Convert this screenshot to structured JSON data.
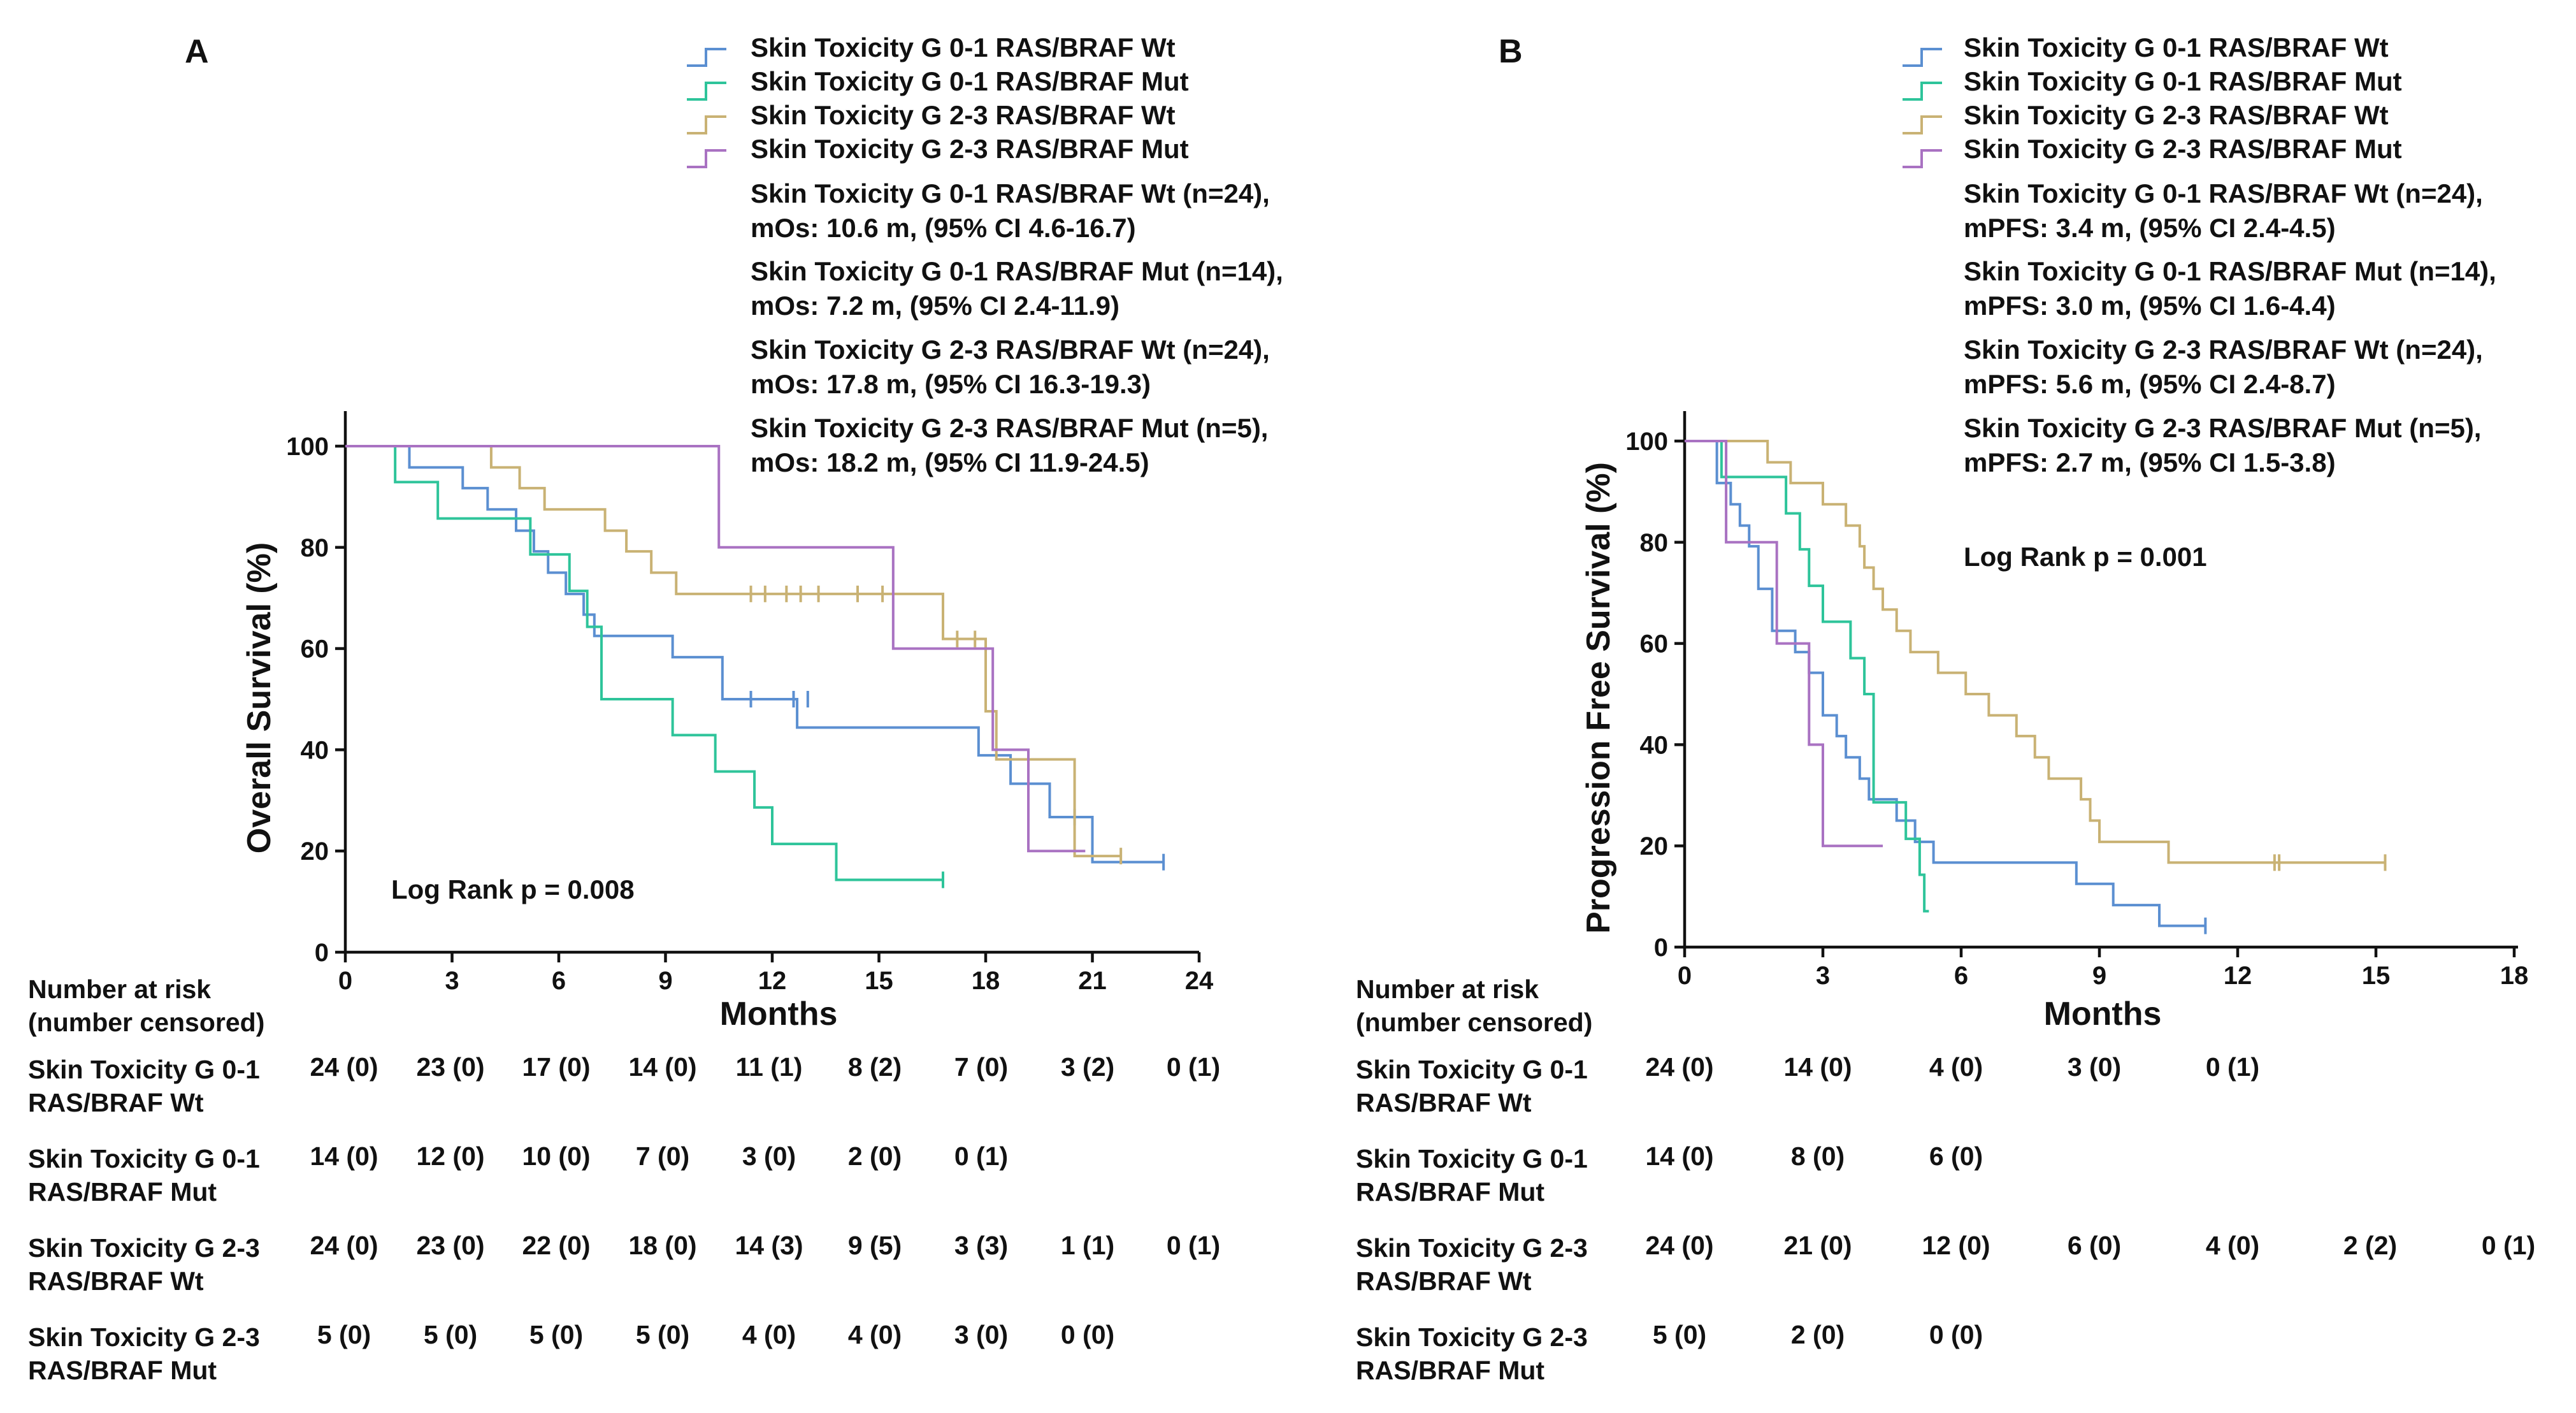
{
  "colors": {
    "wt01": "#5b8fd1",
    "mut01": "#2ec49a",
    "wt23": "#c9b274",
    "mut23": "#a972c2"
  },
  "series_names": [
    "Skin Toxicity G 0-1 RAS/BRAF Wt",
    "Skin Toxicity G 0-1 RAS/BRAF Mut",
    "Skin Toxicity G 2-3 RAS/BRAF Wt",
    "Skin Toxicity G 2-3 RAS/BRAF Mut"
  ],
  "risk_header": [
    "Number at risk",
    "(number censored)"
  ],
  "risk_rows": [
    [
      "Skin Toxicity G 0-1",
      "RAS/BRAF Wt"
    ],
    [
      "Skin Toxicity G 0-1",
      "RAS/BRAF Mut"
    ],
    [
      "Skin Toxicity G 2-3",
      "RAS/BRAF Wt"
    ],
    [
      "Skin Toxicity G 2-3",
      "RAS/BRAF Mut"
    ]
  ],
  "chart_data": [
    {
      "type": "line",
      "panel": "A",
      "xlabel": "Months",
      "ylabel": "Overall Survival (%)",
      "xlim": [
        0,
        24
      ],
      "ylim": [
        0,
        100
      ],
      "xticks": [
        0,
        3,
        6,
        9,
        12,
        15,
        18,
        21,
        24
      ],
      "yticks": [
        0,
        20,
        40,
        60,
        80,
        100
      ],
      "annotation": "Log Rank p = 0.008",
      "median_lines": [
        [
          "Skin Toxicity G 0-1 RAS/BRAF Wt (n=24),",
          "mOs: 10.6 m, (95% CI 4.6-16.7)"
        ],
        [
          "Skin Toxicity G 0-1 RAS/BRAF Mut (n=14),",
          "mOs: 7.2 m, (95% CI 2.4-11.9)"
        ],
        [
          "Skin Toxicity G 2-3 RAS/BRAF Wt (n=24),",
          "mOs: 17.8 m, (95% CI 16.3-19.3)"
        ],
        [
          "Skin Toxicity G 2-3 RAS/BRAF Mut (n=5),",
          "mOs: 18.2 m, (95% CI 11.9-24.5)"
        ]
      ],
      "risk_x": [
        0,
        3,
        6,
        9,
        12,
        15,
        18,
        21,
        24
      ],
      "risk_values": [
        [
          "24 (0)",
          "23 (0)",
          "17 (0)",
          "14 (0)",
          "11 (1)",
          "8 (2)",
          "7 (0)",
          "3 (2)",
          "0 (1)"
        ],
        [
          "14 (0)",
          "12 (0)",
          "10 (0)",
          "7 (0)",
          "3 (0)",
          "2 (0)",
          "0 (1)",
          "",
          ""
        ],
        [
          "24 (0)",
          "23 (0)",
          "22 (0)",
          "18 (0)",
          "14 (3)",
          "9 (5)",
          "3 (3)",
          "1 (1)",
          "0 (1)"
        ],
        [
          "5 (0)",
          "5 (0)",
          "5 (0)",
          "5 (0)",
          "4 (0)",
          "4 (0)",
          "3 (0)",
          "0 (0)",
          ""
        ]
      ],
      "series": [
        {
          "name": "Skin Toxicity G 0-1 RAS/BRAF Wt",
          "key": "wt01",
          "times": [
            1.8,
            3.3,
            4.0,
            4.8,
            5.3,
            5.7,
            6.2,
            6.7,
            7.0,
            9.2,
            10.6,
            12.7,
            17.8,
            18.7,
            19.8,
            21.0
          ],
          "survival": [
            95.8,
            91.7,
            87.5,
            83.3,
            79.2,
            75.0,
            70.8,
            66.7,
            62.5,
            58.3,
            50.0,
            44.4,
            38.9,
            33.3,
            26.7,
            17.8
          ],
          "censors": [
            [
              19.2,
              33.3
            ],
            [
              20.5,
              26.7
            ],
            [
              11.4,
              50.0
            ],
            [
              12.6,
              50.0
            ],
            [
              13.0,
              50.0
            ],
            [
              23.0,
              17.8
            ]
          ]
        },
        {
          "name": "Skin Toxicity G 0-1 RAS/BRAF Mut",
          "key": "mut01",
          "times": [
            1.4,
            2.6,
            5.2,
            6.3,
            6.8,
            7.2,
            9.2,
            10.4,
            11.5,
            12.0,
            13.8
          ],
          "survival": [
            92.9,
            85.7,
            78.6,
            71.4,
            64.3,
            50.0,
            42.9,
            35.7,
            28.6,
            21.4,
            14.3
          ],
          "censors": [
            [
              16.8,
              14.3
            ]
          ]
        },
        {
          "name": "Skin Toxicity G 2-3 RAS/BRAF Wt",
          "key": "wt23",
          "times": [
            4.1,
            4.9,
            5.6,
            7.3,
            7.9,
            8.6,
            9.3,
            16.8,
            18.0,
            18.3,
            20.5
          ],
          "survival": [
            95.8,
            91.7,
            87.5,
            83.3,
            79.2,
            75.0,
            70.8,
            61.9,
            47.6,
            38.1,
            19.0
          ],
          "censors": [
            [
              11.4,
              70.8
            ],
            [
              11.8,
              70.8
            ],
            [
              12.4,
              70.8
            ],
            [
              12.8,
              70.8
            ],
            [
              13.3,
              70.8
            ],
            [
              14.4,
              70.8
            ],
            [
              15.1,
              70.8
            ],
            [
              17.2,
              61.9
            ],
            [
              17.7,
              61.9
            ],
            [
              21.8,
              19.0
            ]
          ]
        },
        {
          "name": "Skin Toxicity G 2-3 RAS/BRAF Mut",
          "key": "mut23",
          "times": [
            10.5,
            15.4,
            18.2,
            19.2
          ],
          "survival": [
            80.0,
            60.0,
            40.0,
            20.0
          ],
          "end": 20.8,
          "censors": []
        }
      ]
    },
    {
      "type": "line",
      "panel": "B",
      "xlabel": "Months",
      "ylabel": "Progression Free Survival (%)",
      "xlim": [
        0,
        18
      ],
      "ylim": [
        0,
        100
      ],
      "xticks": [
        0,
        3,
        6,
        9,
        12,
        15,
        18
      ],
      "yticks": [
        0,
        20,
        40,
        60,
        80,
        100
      ],
      "annotation": "Log Rank p = 0.001",
      "median_lines": [
        [
          "Skin Toxicity G 0-1 RAS/BRAF Wt (n=24),",
          "mPFS: 3.4 m, (95% CI 2.4-4.5)"
        ],
        [
          "Skin Toxicity G 0-1 RAS/BRAF Mut (n=14),",
          "mPFS: 3.0 m, (95% CI 1.6-4.4)"
        ],
        [
          "Skin Toxicity G 2-3 RAS/BRAF Wt (n=24),",
          "mPFS: 5.6 m, (95% CI 2.4-8.7)"
        ],
        [
          "Skin Toxicity G 2-3 RAS/BRAF Mut (n=5),",
          "mPFS: 2.7 m, (95% CI 1.5-3.8)"
        ]
      ],
      "risk_x": [
        0,
        3,
        6,
        9,
        12,
        15,
        18
      ],
      "risk_values": [
        [
          "24 (0)",
          "14 (0)",
          "4 (0)",
          "3 (0)",
          "0 (1)",
          "",
          ""
        ],
        [
          "14 (0)",
          "8 (0)",
          "6 (0)",
          "",
          "",
          "",
          ""
        ],
        [
          "24 (0)",
          "21 (0)",
          "12 (0)",
          "6 (0)",
          "4 (0)",
          "2 (2)",
          "0 (1)"
        ],
        [
          "5 (0)",
          "2 (0)",
          "0 (0)",
          "",
          "",
          "",
          ""
        ]
      ],
      "series": [
        {
          "name": "Skin Toxicity G 0-1 RAS/BRAF Wt",
          "key": "wt01",
          "times": [
            0.7,
            1.0,
            1.2,
            1.4,
            1.6,
            1.9,
            2.4,
            2.7,
            3.0,
            3.3,
            3.5,
            3.8,
            4.0,
            4.6,
            5.0,
            5.4,
            5.6,
            5.8,
            7.2,
            8.5,
            9.3,
            10.3
          ],
          "survival": [
            91.7,
            87.5,
            83.3,
            79.2,
            70.8,
            62.5,
            58.3,
            54.2,
            45.8,
            41.7,
            37.5,
            33.3,
            29.2,
            25.0,
            20.8,
            16.7,
            16.7,
            16.7,
            16.7,
            12.5,
            8.3,
            4.2
          ],
          "censors": [
            [
              11.3,
              4.2
            ]
          ]
        },
        {
          "name": "Skin Toxicity G 0-1 RAS/BRAF Mut",
          "key": "mut01",
          "times": [
            0.8,
            2.2,
            2.5,
            2.7,
            3.0,
            3.6,
            3.9,
            4.1,
            4.8,
            5.1,
            5.2
          ],
          "survival": [
            92.9,
            85.7,
            78.6,
            71.4,
            64.3,
            57.1,
            50.0,
            28.6,
            21.4,
            14.3,
            7.1
          ],
          "end": 5.3,
          "censors": []
        },
        {
          "name": "Skin Toxicity G 2-3 RAS/BRAF Wt",
          "key": "wt23",
          "times": [
            1.8,
            2.3,
            3.0,
            3.5,
            3.8,
            3.9,
            4.1,
            4.3,
            4.6,
            4.9,
            5.5,
            6.1,
            6.6,
            7.2,
            7.6,
            7.9,
            8.6,
            8.8,
            9.0,
            10.0,
            10.5,
            11.2
          ],
          "survival": [
            95.8,
            91.7,
            87.5,
            83.3,
            79.2,
            75.0,
            70.8,
            66.7,
            62.5,
            58.3,
            54.2,
            50.0,
            45.8,
            41.7,
            37.5,
            33.3,
            29.2,
            25.0,
            20.8,
            20.8,
            16.7,
            16.7
          ],
          "censors": [
            [
              12.8,
              16.7
            ],
            [
              12.9,
              16.7
            ],
            [
              15.2,
              16.7
            ]
          ]
        },
        {
          "name": "Skin Toxicity G 2-3 RAS/BRAF Mut",
          "key": "mut23",
          "times": [
            0.9,
            2.0,
            2.7,
            3.0
          ],
          "survival": [
            80.0,
            60.0,
            40.0,
            20.0
          ],
          "end": 4.3,
          "censors": []
        }
      ]
    }
  ]
}
